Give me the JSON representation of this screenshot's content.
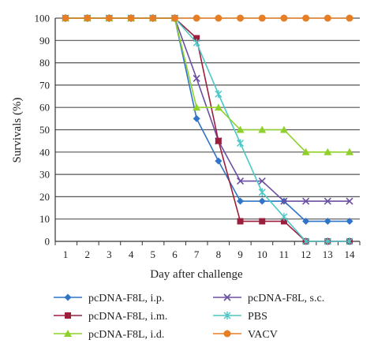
{
  "chart_data": {
    "type": "line",
    "xlabel": "Day after challenge",
    "ylabel": "Survivals (%)",
    "x": [
      1,
      2,
      3,
      4,
      5,
      6,
      7,
      8,
      9,
      10,
      11,
      12,
      13,
      14
    ],
    "xlim": [
      1,
      14
    ],
    "ylim": [
      0,
      100
    ],
    "yticks": [
      0,
      10,
      20,
      30,
      40,
      50,
      60,
      70,
      80,
      90,
      100
    ],
    "grid": true,
    "legend_position": "bottom",
    "series": [
      {
        "name": "pcDNA-F8L, i.p.",
        "color": "#2e75c7",
        "marker": "diamond",
        "values": [
          100,
          100,
          100,
          100,
          100,
          100,
          55,
          36,
          18,
          18,
          18,
          9,
          9,
          9
        ]
      },
      {
        "name": "pcDNA-F8L, s.c.",
        "color": "#6a4fa3",
        "marker": "x",
        "values": [
          100,
          100,
          100,
          100,
          100,
          100,
          73,
          45,
          27,
          27,
          18,
          18,
          18,
          18
        ]
      },
      {
        "name": "pcDNA-F8L, i.m.",
        "color": "#9b1e3d",
        "marker": "square",
        "values": [
          100,
          100,
          100,
          100,
          100,
          100,
          91,
          45,
          9,
          9,
          9,
          0,
          0,
          0
        ]
      },
      {
        "name": "PBS",
        "color": "#4cc6c6",
        "marker": "asterisk",
        "values": [
          100,
          100,
          100,
          100,
          100,
          100,
          89,
          66,
          44,
          22,
          11,
          0,
          0,
          0
        ]
      },
      {
        "name": "pcDNA-F8L, i.d.",
        "color": "#8fd12a",
        "marker": "triangle",
        "values": [
          100,
          100,
          100,
          100,
          100,
          100,
          60,
          60,
          50,
          50,
          50,
          40,
          40,
          40
        ]
      },
      {
        "name": "VACV",
        "color": "#e57e24",
        "marker": "circle",
        "values": [
          100,
          100,
          100,
          100,
          100,
          100,
          100,
          100,
          100,
          100,
          100,
          100,
          100,
          100
        ]
      }
    ]
  }
}
